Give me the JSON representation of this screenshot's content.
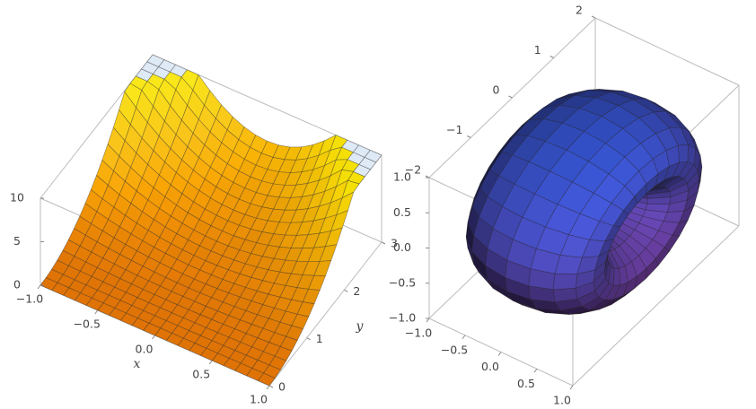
{
  "chart_data": [
    {
      "type": "surface3d",
      "x_label": "x",
      "y_label": "y",
      "xlim": [
        -1,
        1
      ],
      "ylim": [
        0,
        3
      ],
      "zlim": [
        0,
        10
      ],
      "xticks": [
        {
          "value": -1,
          "label": "−1.0"
        },
        {
          "value": -0.5,
          "label": "−0.5"
        },
        {
          "value": 0,
          "label": "0.0"
        },
        0.5,
        {
          "value": 1,
          "label": "1.0"
        }
      ],
      "yticks": [
        0,
        1,
        2,
        3
      ],
      "zticks": [
        0,
        5,
        10
      ]
    },
    {
      "type": "torus3d",
      "xlim": [
        -1,
        1
      ],
      "ylim": [
        -2,
        2
      ],
      "zlim": [
        -1,
        1
      ],
      "xticks": [
        {
          "value": -1,
          "label": "−1.0"
        },
        {
          "value": -0.5,
          "label": "−0.5"
        },
        {
          "value": 0,
          "label": "0.0"
        },
        0.5,
        {
          "value": 1,
          "label": "1.0"
        }
      ],
      "yticks": [
        {
          "value": -2,
          "label": "−2"
        },
        {
          "value": -1,
          "label": "−1"
        },
        0,
        1,
        2
      ],
      "zticks": [
        {
          "value": -1,
          "label": "−1.0"
        },
        {
          "value": -0.5,
          "label": "−0.5"
        },
        {
          "value": 0,
          "label": "0.0"
        },
        0.5,
        {
          "value": 1,
          "label": "1.0"
        }
      ]
    }
  ]
}
